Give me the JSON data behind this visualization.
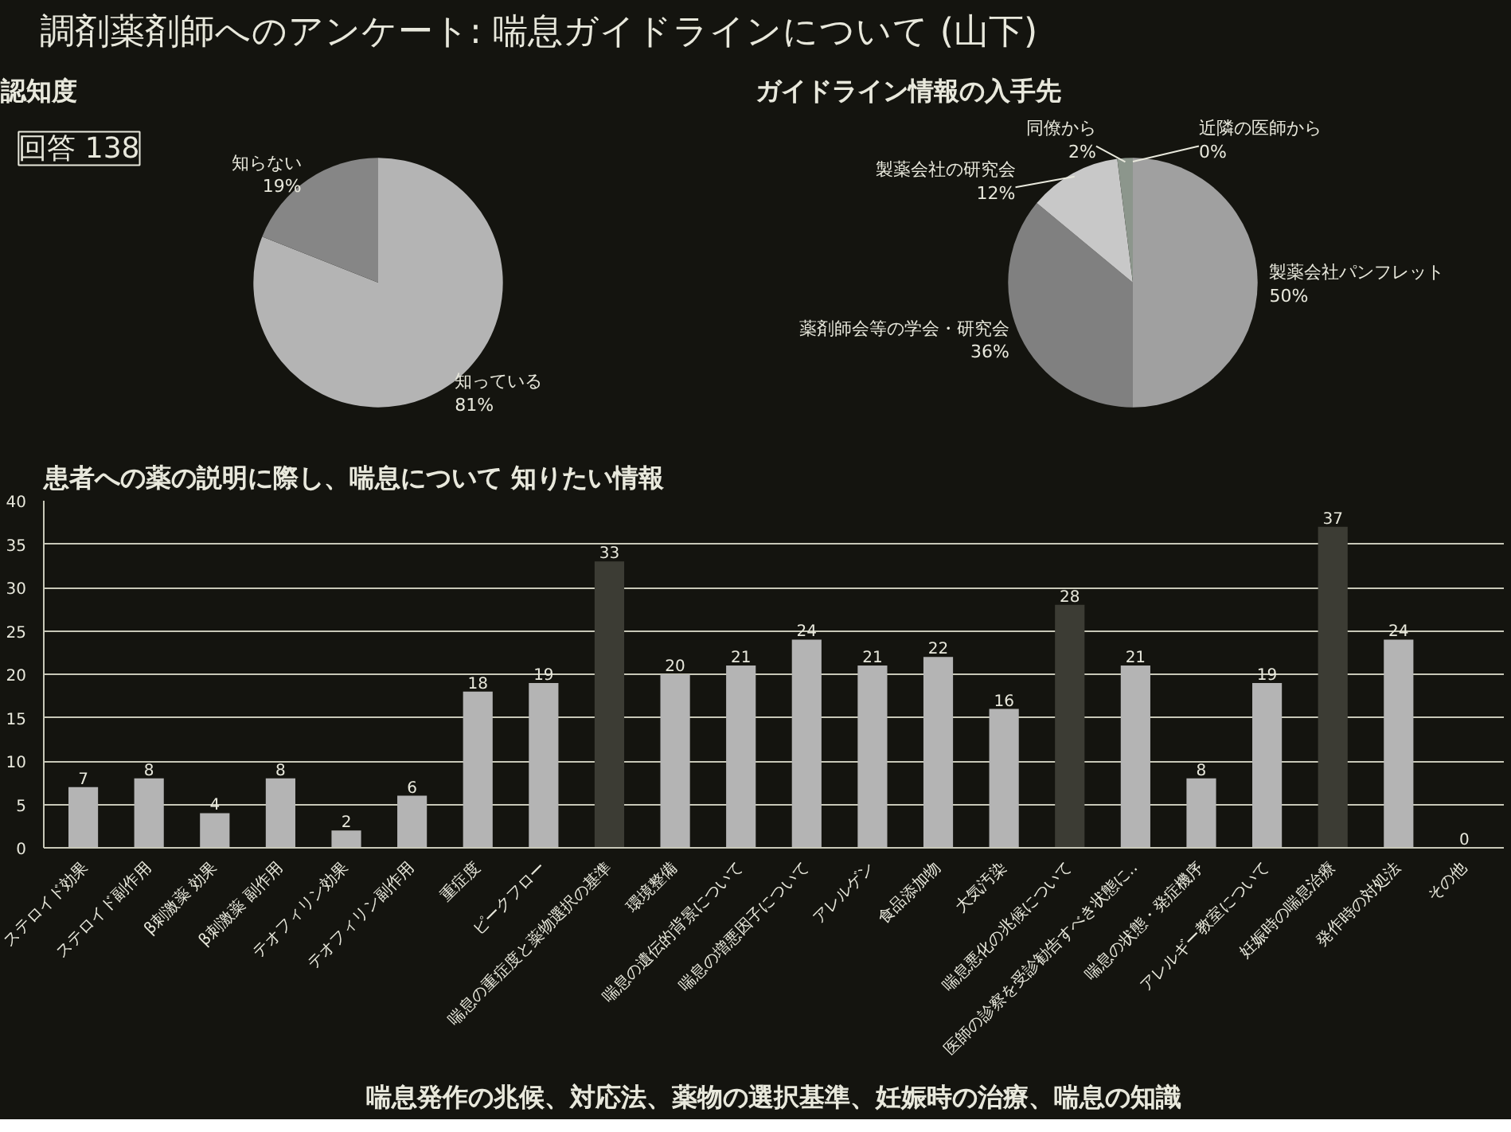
{
  "chart_data": [
    {
      "type": "pie",
      "title": "認知度",
      "annotations": [
        "調剤薬剤師へのアンケート: 喘息ガイドラインについて (山下)",
        "回答 138"
      ],
      "categories": [
        "知っている",
        "知らない"
      ],
      "values": [
        81,
        19
      ],
      "colors": [
        "#b4b4b4",
        "#868686"
      ],
      "value_labels": [
        "81%",
        "19%"
      ]
    },
    {
      "type": "pie",
      "title": "ガイドライン情報の入手先",
      "categories": [
        "製薬会社パンフレット",
        "薬剤師会等の学会・研究会",
        "製薬会社の研究会",
        "同僚から",
        "近隣の医師から"
      ],
      "values": [
        50,
        36,
        12,
        2,
        0
      ],
      "colors": [
        "#a0a0a0",
        "#808080",
        "#c8c8c8",
        "#8c968c",
        "#707070"
      ],
      "value_labels": [
        "50%",
        "36%",
        "12%",
        "2%",
        "0%"
      ]
    },
    {
      "type": "bar",
      "title": "患者への薬の説明に際し、喘息について 知りたい情報",
      "annotations": [
        "喘息発作の兆候、対応法、薬物の選択基準、妊娠時の治療、喘息の知識"
      ],
      "categories": [
        "ステロイド効果",
        "ステロイド副作用",
        "β刺激薬 効果",
        "β刺激薬 副作用",
        "テオフィリン効果",
        "テオフィリン副作用",
        "重症度",
        "ピークフロー",
        "喘息の重症度と薬物選択の基準",
        "環境整備",
        "喘息の遺伝的背景について",
        "喘息の増悪因子について",
        "アレルゲン",
        "食品添加物",
        "大気汚染",
        "喘息悪化の兆候について",
        "医師の診察を受診勧告すべき状態に‥",
        "喘息の状態・発症機序",
        "アレルギー教室について",
        "妊娠時の喘息治療",
        "発作時の対処法",
        "その他"
      ],
      "values": [
        7,
        8,
        4,
        8,
        2,
        6,
        18,
        19,
        33,
        20,
        21,
        24,
        21,
        22,
        16,
        28,
        21,
        8,
        19,
        37,
        24,
        0
      ],
      "colors": [
        "#b4b4b4",
        "#b4b4b4",
        "#b4b4b4",
        "#b4b4b4",
        "#b4b4b4",
        "#b4b4b4",
        "#b4b4b4",
        "#b4b4b4",
        "#3c3c34",
        "#b4b4b4",
        "#b4b4b4",
        "#b4b4b4",
        "#b4b4b4",
        "#b4b4b4",
        "#b4b4b4",
        "#3c3c34",
        "#b4b4b4",
        "#b4b4b4",
        "#b4b4b4",
        "#3c3c34",
        "#b4b4b4",
        "#b4b4b4"
      ],
      "ylim": [
        0,
        40
      ],
      "yticks": [
        0,
        5,
        10,
        15,
        20,
        25,
        30,
        35,
        40
      ],
      "grid": "y",
      "data_labels": true
    }
  ]
}
